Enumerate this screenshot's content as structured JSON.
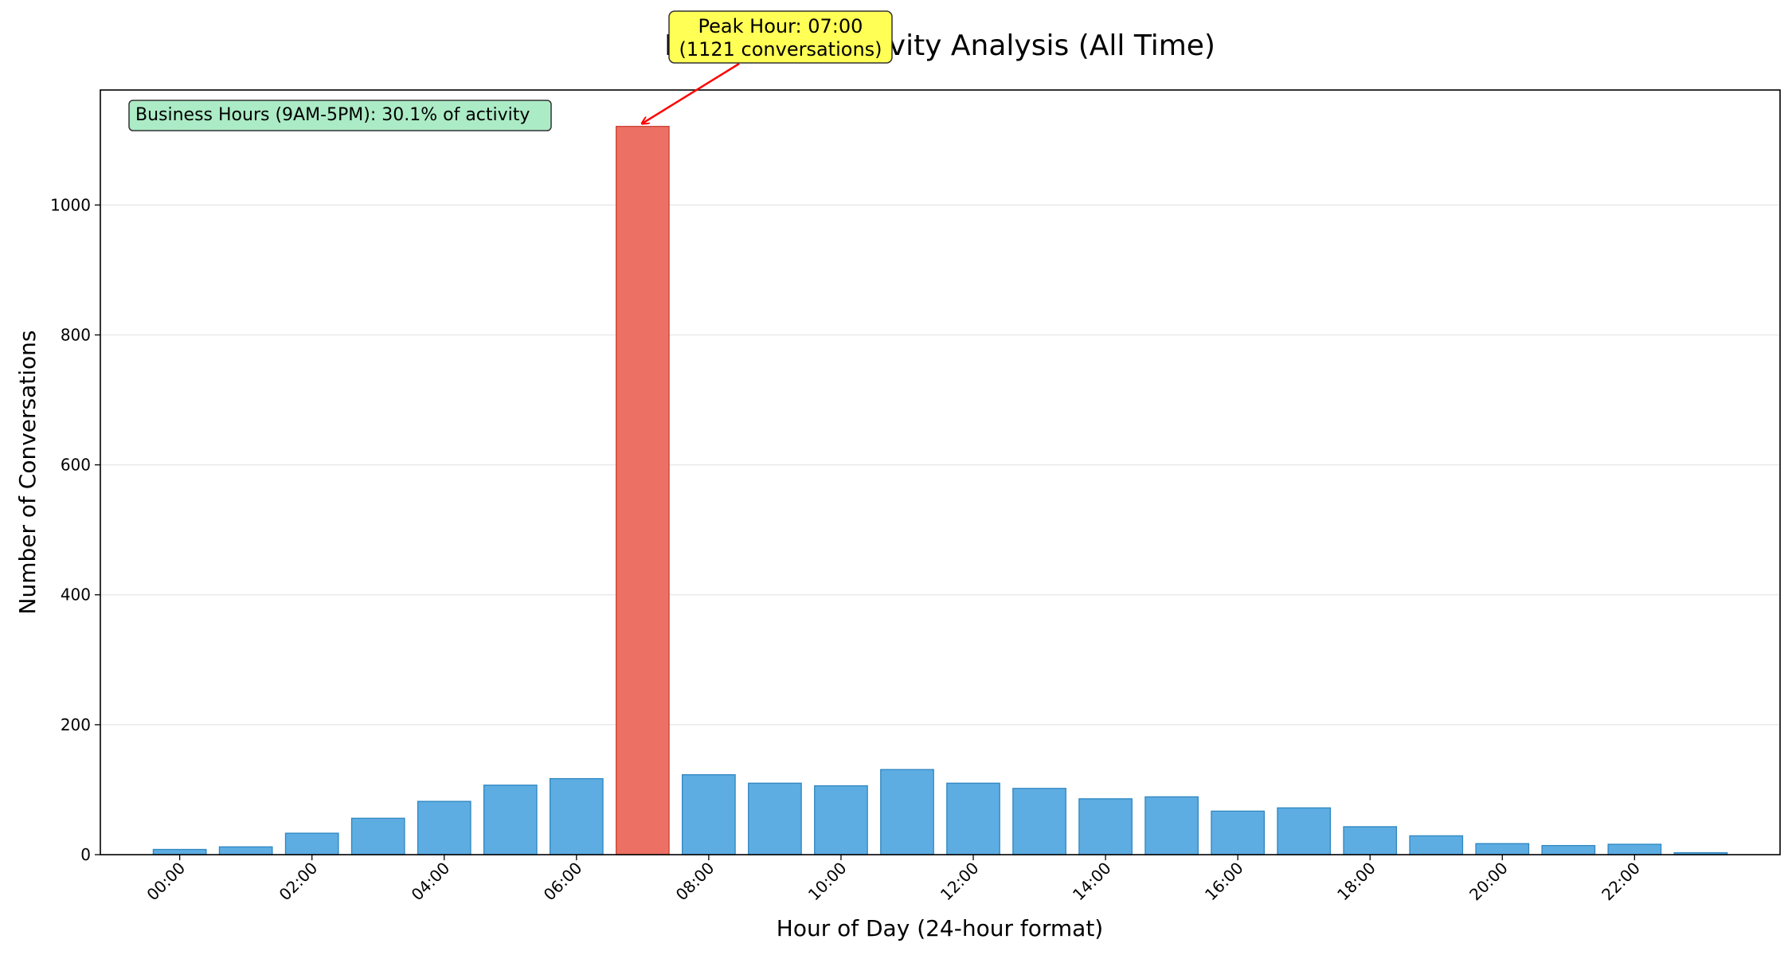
{
  "chart_data": {
    "type": "bar",
    "title": "Peak Hours Activity Analysis (All Time)",
    "xlabel": "Hour of Day (24-hour format)",
    "ylabel": "Number of Conversations",
    "categories": [
      "00:00",
      "01:00",
      "02:00",
      "03:00",
      "04:00",
      "05:00",
      "06:00",
      "07:00",
      "08:00",
      "09:00",
      "10:00",
      "11:00",
      "12:00",
      "13:00",
      "14:00",
      "15:00",
      "16:00",
      "17:00",
      "18:00",
      "19:00",
      "20:00",
      "21:00",
      "22:00",
      "23:00"
    ],
    "x_tick_labels": [
      "00:00",
      "02:00",
      "04:00",
      "06:00",
      "08:00",
      "10:00",
      "12:00",
      "14:00",
      "16:00",
      "18:00",
      "20:00",
      "22:00"
    ],
    "values": [
      8,
      12,
      33,
      56,
      82,
      107,
      117,
      1121,
      123,
      110,
      106,
      131,
      110,
      102,
      86,
      89,
      67,
      72,
      43,
      29,
      17,
      14,
      16,
      3
    ],
    "y_ticks": [
      0,
      200,
      400,
      600,
      800,
      1000
    ],
    "ylim": [
      0,
      1177
    ],
    "grid": "y",
    "peak_index": 7,
    "colors": {
      "bar": "#5dade2",
      "bar_edge": "#2e86c1",
      "peak_bar": "#ec7063",
      "peak_edge": "#cb4335",
      "arrow": "#ff0000",
      "peak_box": "#ffff55",
      "business_box": "#abebc6"
    },
    "annotations": {
      "peak_line1": "Peak Hour: 07:00",
      "peak_line2": "(1121 conversations)",
      "business": "Business Hours (9AM-5PM): 30.1% of activity"
    }
  }
}
